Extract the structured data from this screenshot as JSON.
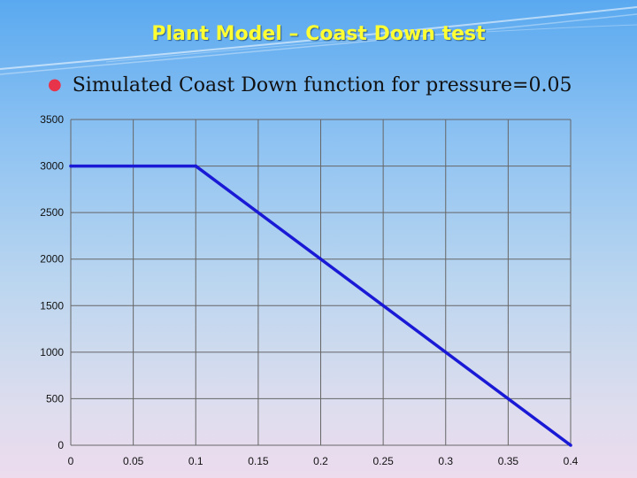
{
  "slide": {
    "title": "Plant Model – Coast Down test",
    "bullet": "Simulated Coast Down function for pressure=0.05"
  },
  "colors": {
    "title": "#ffff33",
    "line": "#1a1ad6",
    "grid": "#666666"
  },
  "chart_data": {
    "type": "line",
    "x": [
      0,
      0.1,
      0.4
    ],
    "series": [
      {
        "values": [
          3000,
          3000,
          0
        ]
      }
    ],
    "xlim": [
      0,
      0.4
    ],
    "ylim": [
      0,
      3500
    ],
    "x_ticks": [
      0,
      0.05,
      0.1,
      0.15,
      0.2,
      0.25,
      0.3,
      0.35,
      0.4
    ],
    "x_tick_labels": [
      "0",
      "0.05",
      "0.1",
      "0.15",
      "0.2",
      "0.25",
      "0.3",
      "0.35",
      "0.4"
    ],
    "y_ticks": [
      0,
      500,
      1000,
      1500,
      2000,
      2500,
      3000,
      3500
    ],
    "y_tick_labels": [
      "0",
      "500",
      "1000",
      "1500",
      "2000",
      "2500",
      "3000",
      "3500"
    ],
    "grid": true,
    "legend": "none"
  }
}
